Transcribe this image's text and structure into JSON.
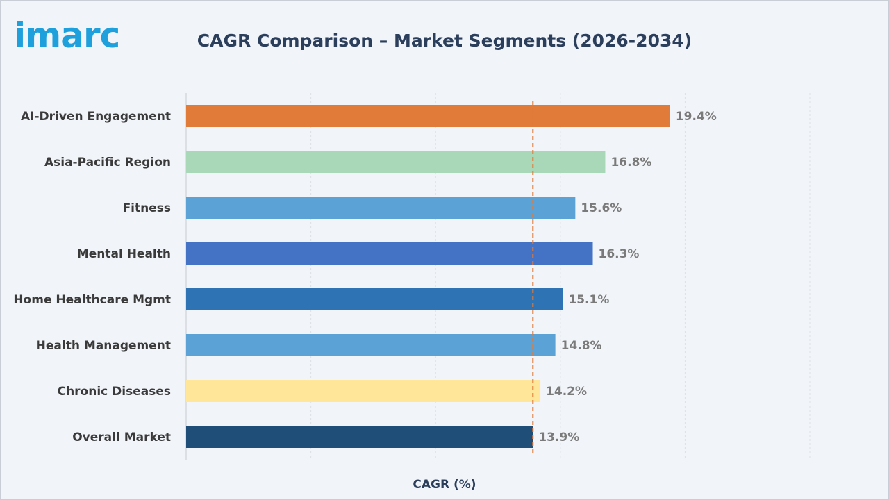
{
  "logo": {
    "text": "imarc"
  },
  "chart_data": {
    "type": "bar",
    "orientation": "horizontal",
    "title": "CAGR Comparison – Market Segments (2026-2034)",
    "xlabel": "CAGR (%)",
    "ylabel": "",
    "categories": [
      "AI-Driven Engagement",
      "Asia-Pacific Region",
      "Fitness",
      "Mental Health",
      "Home Healthcare Mgmt",
      "Health Management",
      "Chronic Diseases",
      "Overall Market"
    ],
    "values": [
      19.4,
      16.8,
      15.6,
      16.3,
      15.1,
      14.8,
      14.2,
      13.9
    ],
    "value_labels": [
      "19.4%",
      "16.8%",
      "15.6%",
      "16.3%",
      "15.1%",
      "14.8%",
      "14.2%",
      "13.9%"
    ],
    "bar_colors": [
      "#e07b39",
      "#a9d8b8",
      "#5ba3d6",
      "#4472c4",
      "#2e74b5",
      "#5ba3d6",
      "#ffe699",
      "#1f4e79"
    ],
    "xlim": [
      0,
      25
    ],
    "reference_line": {
      "value": 13.9,
      "style": "dashed",
      "color": "#e07b39"
    },
    "grid": true,
    "show_x_ticks": false
  }
}
